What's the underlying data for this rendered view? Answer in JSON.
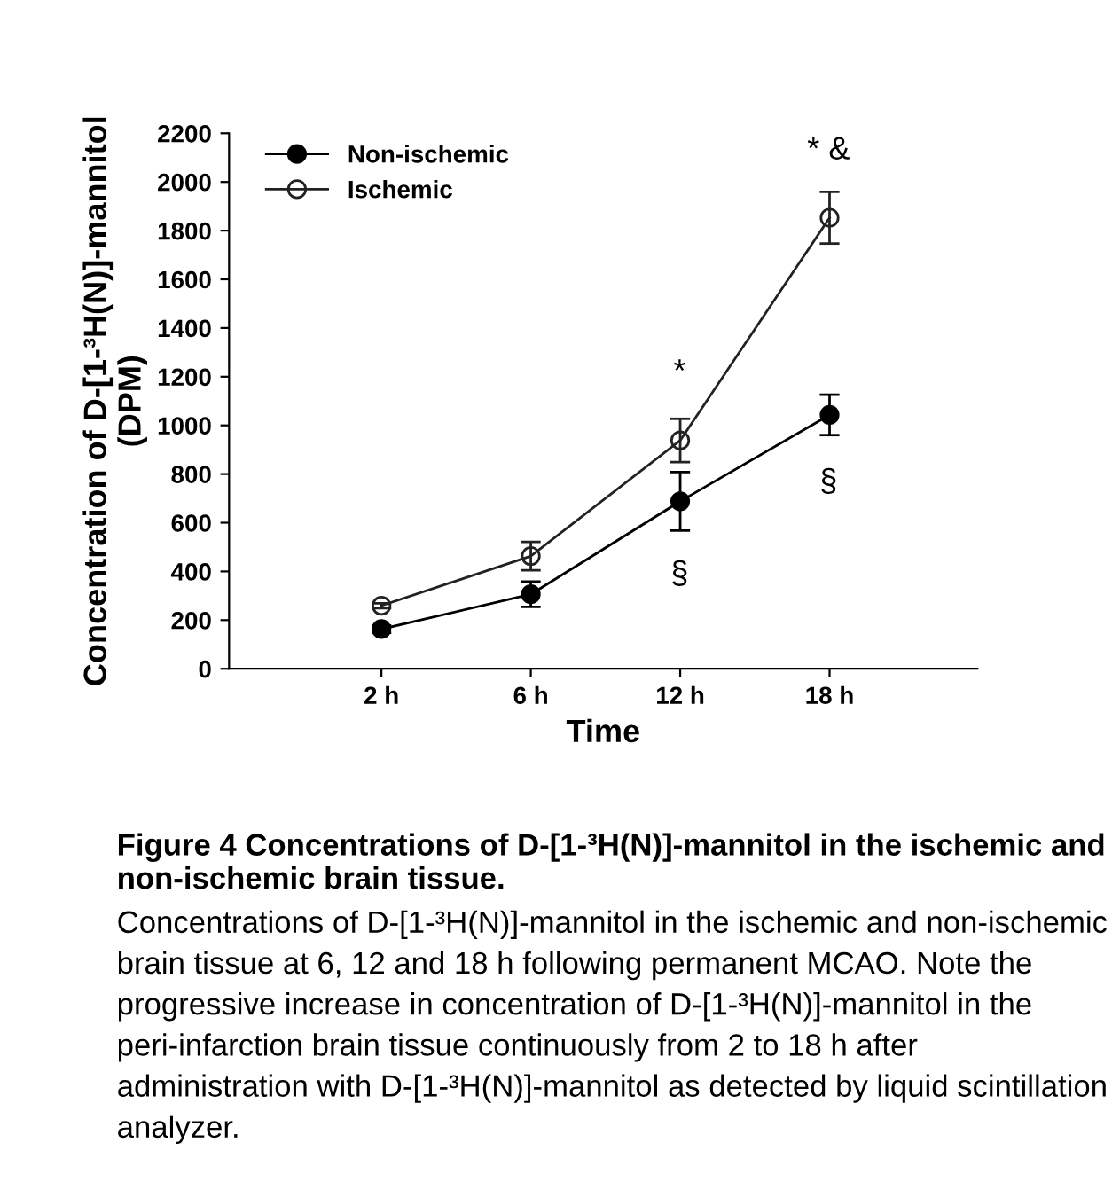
{
  "chart_data": {
    "type": "line",
    "xlabel": "Time",
    "ylabel": "Concentration of D-[1-³H(N)]-mannitol\n(DPM)",
    "categories": [
      "2 h",
      "6 h",
      "12 h",
      "18 h"
    ],
    "series": [
      {
        "name": "Non-ischemic",
        "color": "#000000",
        "values": [
          163,
          306,
          688,
          1043
        ],
        "errors": [
          15,
          52,
          120,
          83
        ]
      },
      {
        "name": "Ischemic",
        "color": "#222222",
        "values": [
          259,
          463,
          938,
          1853
        ],
        "errors": [
          10,
          58,
          89,
          106
        ]
      }
    ],
    "ylim": [
      0,
      2200
    ],
    "yticks": [
      0,
      200,
      400,
      600,
      800,
      1000,
      1200,
      1400,
      1600,
      1800,
      2000,
      2200
    ],
    "marker": "circle",
    "line_style": "solid",
    "grid": false,
    "legend": "top left",
    "annotations": [
      "*",
      "* &",
      "§",
      "§",
      "Figure 4 Concentrations of D-[1-³H(N)]-mannitol in the ischemic and non-ischemic brain tissue.",
      "Concentrations of D-[1-³H(N)]-mannitol in the ischemic and non-ischemic brain tissue at 6, 12 and 18 h following permanent MCAO. Note the progressive increase in concentration of D-[1-³H(N)]-mannitol in the peri-infarction brain tissue continuously from 2 to 18 h after administration with D-[1-³H(N)]-mannitol as detected by liquid scintillation analyzer."
    ]
  }
}
